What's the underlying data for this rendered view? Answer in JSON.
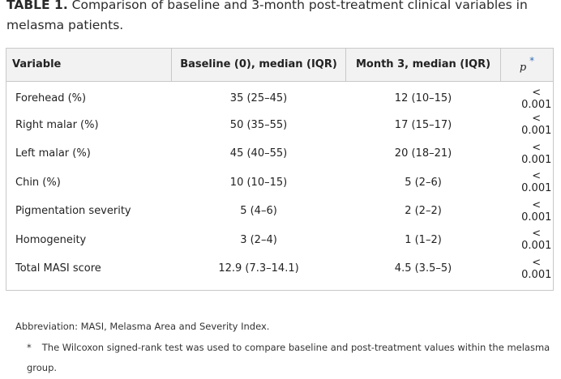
{
  "caption": {
    "label": "TABLE 1.",
    "text": "Comparison of baseline and 3-month post-treatment clinical variables in melasma patients."
  },
  "table": {
    "headers": {
      "variable": "Variable",
      "baseline": "Baseline (0), median (IQR)",
      "month3": "Month 3, median (IQR)",
      "p": "p",
      "p_mark": "*"
    },
    "rows": [
      {
        "variable": "Forehead (%)",
        "baseline": "35 (25–45)",
        "month3": "12 (10–15)",
        "p": "< 0.001"
      },
      {
        "variable": "Right malar (%)",
        "baseline": "50 (35–55)",
        "month3": "17 (15–17)",
        "p": "< 0.001"
      },
      {
        "variable": "Left malar (%)",
        "baseline": "45 (40–55)",
        "month3": "20 (18–21)",
        "p": "< 0.001"
      },
      {
        "variable": "Chin (%)",
        "baseline": "10 (10–15)",
        "month3": "5 (2–6)",
        "p": "< 0.001"
      },
      {
        "variable": "Pigmentation severity",
        "baseline": "5 (4–6)",
        "month3": "2 (2–2)",
        "p": "< 0.001"
      },
      {
        "variable": "Homogeneity",
        "baseline": "3 (2–4)",
        "month3": "1 (1–2)",
        "p": "< 0.001"
      },
      {
        "variable": "Total MASI score",
        "baseline": "12.9 (7.3–14.1)",
        "month3": "4.5 (3.5–5)",
        "p": "< 0.001"
      }
    ]
  },
  "footnotes": {
    "abbreviation": "Abbreviation: MASI, Melasma Area and Severity Index.",
    "star_mark": "*",
    "star_text": "The Wilcoxon signed-rank test was used to compare baseline and post-treatment values within the melasma group."
  },
  "colors": {
    "header_bg": "#f2f2f2",
    "border": "#c8c8c8",
    "link_blue": "#2f6db5"
  }
}
